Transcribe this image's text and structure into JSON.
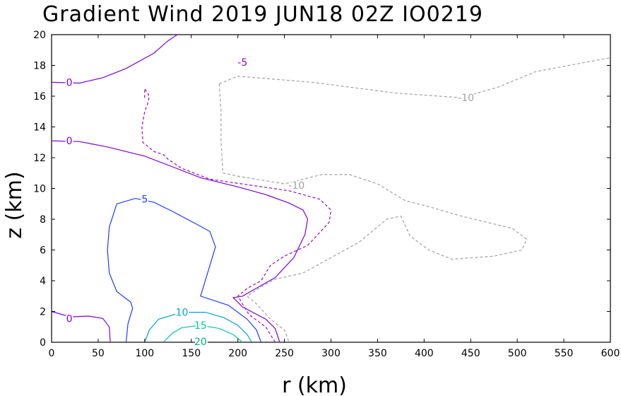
{
  "chart_data": {
    "type": "contour",
    "title": "Gradient Wind 2019 JUN18 02Z   IO0219",
    "xlabel": "r (km)",
    "ylabel": "z (km)",
    "xlim": [
      0,
      600
    ],
    "ylim": [
      0,
      20
    ],
    "x_ticks": [
      "0",
      "50",
      "100",
      "150",
      "200",
      "250",
      "300",
      "350",
      "400",
      "450",
      "500",
      "550",
      "600"
    ],
    "y_ticks": [
      "0",
      "2",
      "4",
      "6",
      "8",
      "10",
      "12",
      "14",
      "16",
      "18",
      "20"
    ],
    "grid": false,
    "legend": "none",
    "negative_contours_dashed": true,
    "contours": [
      {
        "level": 0,
        "label": "0",
        "color": "#7f00d8",
        "dashed": false,
        "lines": [
          {
            "label_at": [
              19,
              16.9
            ],
            "points": [
              [
                0,
                16.9
              ],
              [
                30,
                16.85
              ],
              [
                55,
                17.2
              ],
              [
                80,
                17.8
              ],
              [
                110,
                18.8
              ],
              [
                125,
                19.6
              ],
              [
                135,
                20
              ]
            ]
          },
          {
            "label_at": [
              19,
              13.1
            ],
            "points": [
              [
                0,
                13.1
              ],
              [
                30,
                13.05
              ],
              [
                60,
                12.7
              ],
              [
                100,
                12.1
              ],
              [
                130,
                11.4
              ],
              [
                160,
                10.7
              ],
              [
                200,
                10.1
              ],
              [
                230,
                9.6
              ],
              [
                255,
                9.05
              ],
              [
                270,
                8.6
              ],
              [
                275,
                8.0
              ],
              [
                272,
                7.0
              ],
              [
                260,
                5.5
              ],
              [
                240,
                4.2
              ],
              [
                205,
                3.0
              ],
              [
                195,
                2.9
              ],
              [
                205,
                2.3
              ],
              [
                230,
                1.5
              ],
              [
                240,
                0.9
              ],
              [
                245,
                0
              ]
            ]
          },
          {
            "label_at": [
              19,
              1.55
            ],
            "points": [
              [
                0,
                2.0
              ],
              [
                20,
                1.65
              ],
              [
                40,
                1.7
              ],
              [
                55,
                1.55
              ],
              [
                62,
                1.0
              ],
              [
                63,
                0
              ]
            ]
          }
        ]
      },
      {
        "level": 5,
        "label": "5",
        "color": "#1e3cff",
        "dashed": false,
        "lines": [
          {
            "label_at": [
              100,
              9.3
            ],
            "points": [
              [
                80,
                0
              ],
              [
                82,
                1.2
              ],
              [
                87,
                2.2
              ],
              [
                85,
                2.6
              ],
              [
                70,
                3.3
              ],
              [
                62,
                4.5
              ],
              [
                60,
                6
              ],
              [
                62,
                7.5
              ],
              [
                70,
                9.0
              ],
              [
                90,
                9.35
              ],
              [
                110,
                9.1
              ],
              [
                130,
                8.5
              ],
              [
                155,
                7.7
              ],
              [
                170,
                7.2
              ],
              [
                176,
                6.2
              ],
              [
                170,
                5.0
              ],
              [
                160,
                3.0
              ],
              [
                190,
                2.4
              ],
              [
                210,
                1.5
              ],
              [
                220,
                0.8
              ],
              [
                225,
                0
              ]
            ]
          }
        ]
      },
      {
        "level": 10,
        "label": "10",
        "color": "#00a0d0",
        "dashed": false,
        "lines": [
          {
            "label_at": [
              140,
              1.95
            ],
            "points": [
              [
                100,
                0
              ],
              [
                105,
                0.8
              ],
              [
                115,
                1.5
              ],
              [
                140,
                1.95
              ],
              [
                165,
                1.95
              ],
              [
                185,
                1.6
              ],
              [
                200,
                1.1
              ],
              [
                210,
                0.5
              ],
              [
                215,
                0
              ]
            ]
          }
        ]
      },
      {
        "level": 15,
        "label": "15",
        "color": "#00c8a0",
        "dashed": false,
        "lines": [
          {
            "label_at": [
              160,
              1.1
            ],
            "points": [
              [
                120,
                0
              ],
              [
                130,
                0.6
              ],
              [
                140,
                0.95
              ],
              [
                160,
                1.1
              ],
              [
                180,
                0.9
              ],
              [
                195,
                0.5
              ],
              [
                205,
                0
              ]
            ]
          }
        ]
      },
      {
        "level": 20,
        "label": "20",
        "color": "#00b070",
        "dashed": false,
        "lines": [
          {
            "label_at": [
              160,
              0.05
            ],
            "points": []
          }
        ]
      },
      {
        "level": -5,
        "label": "-5",
        "color": "#a000c8",
        "dashed": true,
        "lines": [
          {
            "label_at": [
              205,
              18.2
            ],
            "points": [
              [
                100,
                15.9
              ],
              [
                100,
                16.5
              ],
              [
                105,
                16.0
              ],
              [
                103,
                15.5
              ],
              [
                100,
                15.0
              ],
              [
                97,
                14.0
              ],
              [
                98,
                13.0
              ],
              [
                110,
                12.4
              ],
              [
                120,
                12.2
              ],
              [
                125,
                11.9
              ],
              [
                140,
                11.3
              ],
              [
                170,
                10.6
              ],
              [
                215,
                10.2
              ],
              [
                255,
                9.85
              ],
              [
                288,
                9.3
              ],
              [
                300,
                8.6
              ],
              [
                298,
                7.8
              ],
              [
                275,
                6.3
              ],
              [
                250,
                5.6
              ],
              [
                235,
                5.0
              ],
              [
                225,
                4.0
              ],
              [
                210,
                3.5
              ],
              [
                200,
                3.0
              ],
              [
                212,
                1.8
              ],
              [
                230,
                1.0
              ],
              [
                240,
                0
              ]
            ]
          }
        ]
      },
      {
        "level": -10,
        "label": "-10",
        "color": "#a0a0a0",
        "dashed": true,
        "lines": [
          {
            "label_at": [
              445,
              15.9
            ],
            "points": [
              [
                180,
                16.8
              ],
              [
                200,
                17.3
              ],
              [
                280,
                16.9
              ],
              [
                370,
                16.2
              ],
              [
                440,
                15.9
              ],
              [
                480,
                16.6
              ],
              [
                520,
                17.6
              ],
              [
                600,
                18.5
              ]
            ]
          },
          {
            "label_at": [
              263,
              10.2
            ],
            "points": [
              [
                180,
                16.8
              ],
              [
                182,
                15
              ],
              [
                182,
                13
              ],
              [
                184,
                11
              ],
              [
                200,
                10.8
              ],
              [
                250,
                10.3
              ],
              [
                290,
                10.9
              ],
              [
                320,
                10.9
              ],
              [
                350,
                10.3
              ],
              [
                380,
                9.2
              ],
              [
                400,
                8.9
              ],
              [
                440,
                8.2
              ],
              [
                495,
                7.4
              ],
              [
                510,
                6.7
              ],
              [
                505,
                6.0
              ],
              [
                475,
                5.6
              ],
              [
                430,
                5.4
              ],
              [
                405,
                6.0
              ],
              [
                385,
                6.9
              ],
              [
                375,
                8.2
              ],
              [
                360,
                8.0
              ],
              [
                330,
                6.5
              ],
              [
                300,
                5.5
              ],
              [
                270,
                4.5
              ],
              [
                240,
                4.1
              ],
              [
                225,
                3.6
              ],
              [
                210,
                3.0
              ],
              [
                220,
                2.5
              ],
              [
                235,
                1.5
              ],
              [
                250,
                0.8
              ],
              [
                255,
                0
              ]
            ]
          }
        ]
      }
    ]
  }
}
